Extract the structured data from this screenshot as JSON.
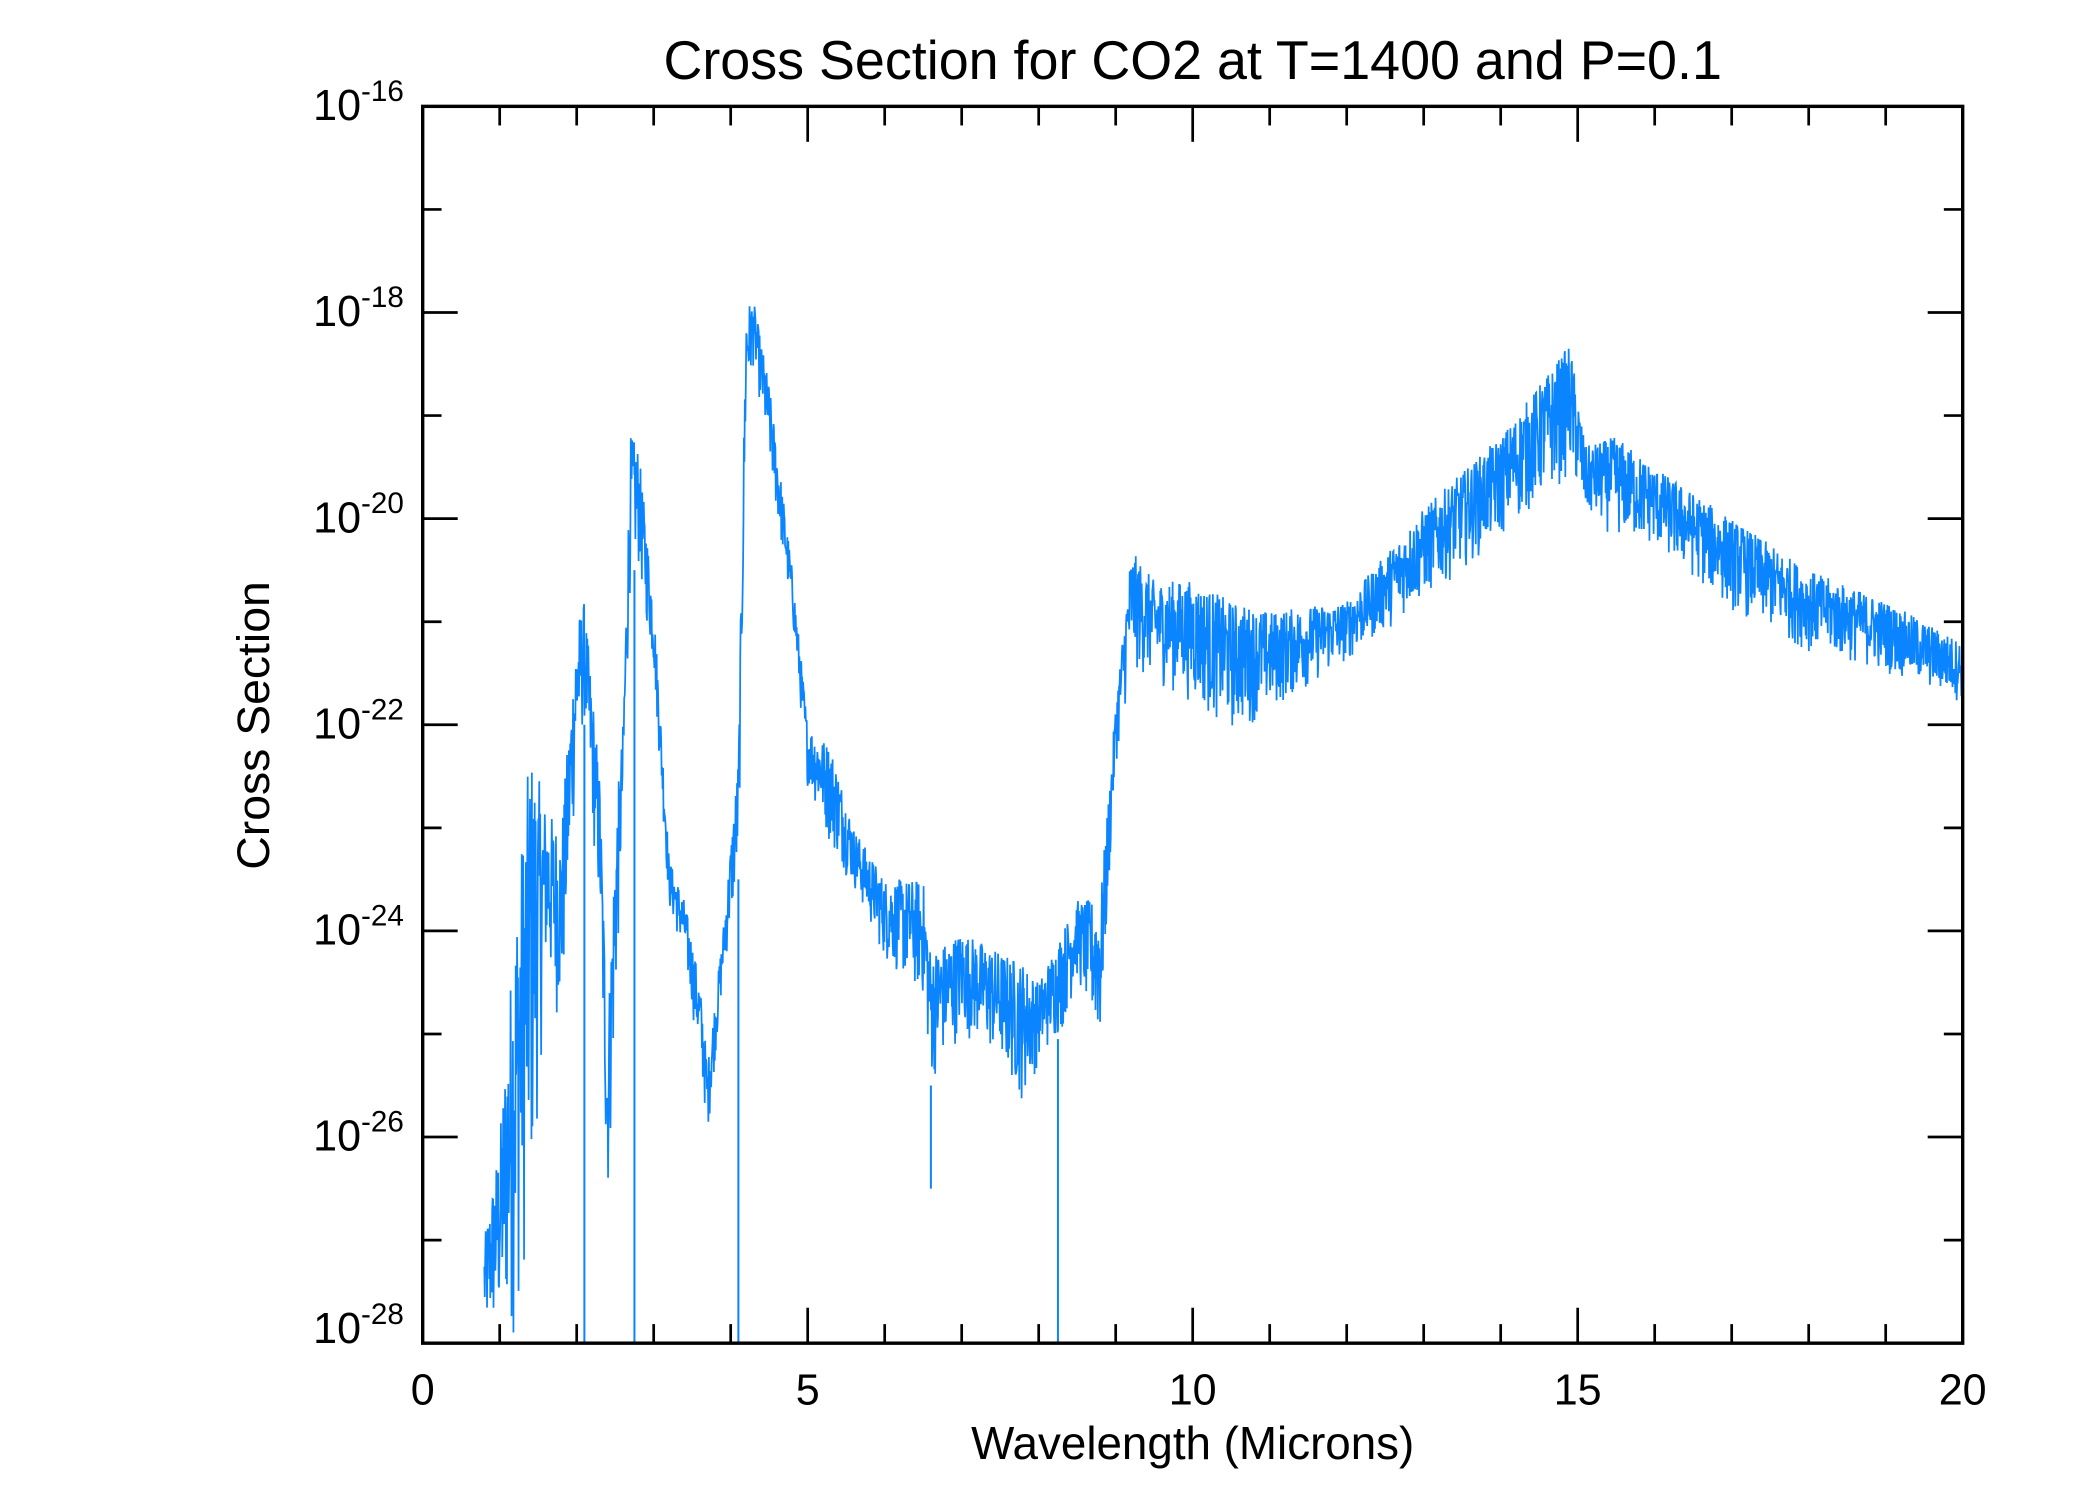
{
  "chart_data": {
    "type": "line",
    "title": "Cross Section for CO2 at T=1400 and P=0.1",
    "xlabel": "Wavelength (Microns)",
    "ylabel": "Cross Section",
    "xlim": [
      0,
      20
    ],
    "ylim": [
      1e-28,
      1e-16
    ],
    "yscale": "log",
    "grid": false,
    "line_color": "#0A84FF",
    "x_ticks": [
      "0",
      "5",
      "10",
      "15",
      "20"
    ],
    "y_ticks": [
      {
        "base": "10",
        "exp": "-16"
      },
      {
        "base": "10",
        "exp": "-18"
      },
      {
        "base": "10",
        "exp": "-20"
      },
      {
        "base": "10",
        "exp": "-22"
      },
      {
        "base": "10",
        "exp": "-24"
      },
      {
        "base": "10",
        "exp": "-26"
      },
      {
        "base": "10",
        "exp": "-28"
      }
    ],
    "series_envelope_log10": {
      "wavelength": [
        0.8,
        1.0,
        1.2,
        1.4,
        1.6,
        1.8,
        2.0,
        2.1,
        2.3,
        2.4,
        2.5,
        2.6,
        2.7,
        2.8,
        3.0,
        3.2,
        3.4,
        3.6,
        3.7,
        3.9,
        4.1,
        4.2,
        4.3,
        4.5,
        4.8,
        5.0,
        5.3,
        5.6,
        6.0,
        6.5,
        6.6,
        7.0,
        7.5,
        7.8,
        8.0,
        8.3,
        8.5,
        8.8,
        9.0,
        9.2,
        9.5,
        10.0,
        10.5,
        11.0,
        12.0,
        13.0,
        14.0,
        14.9,
        15.1,
        15.5,
        16.0,
        17.0,
        18.0,
        19.0,
        20.0
      ],
      "upper": [
        -27.0,
        -26.0,
        -23.8,
        -22.2,
        -22.8,
        -23.0,
        -21.0,
        -20.8,
        -22.5,
        -25.0,
        -23.0,
        -22.0,
        -19.2,
        -19.3,
        -20.8,
        -23.3,
        -23.7,
        -24.5,
        -25.3,
        -24.0,
        -22.3,
        -17.9,
        -17.9,
        -18.7,
        -20.5,
        -22.0,
        -22.2,
        -23.0,
        -23.5,
        -23.5,
        -24.2,
        -24.0,
        -24.2,
        -24.3,
        -24.5,
        -24.0,
        -23.7,
        -23.7,
        -21.8,
        -20.3,
        -20.6,
        -20.6,
        -20.8,
        -20.9,
        -20.8,
        -19.9,
        -19.2,
        -18.3,
        -19.3,
        -19.2,
        -19.5,
        -20.0,
        -20.5,
        -20.8,
        -21.2
      ],
      "lower": [
        -28.0,
        -28.0,
        -28.0,
        -27.0,
        -24.5,
        -25.0,
        -22.5,
        -22.0,
        -24.0,
        -26.8,
        -25.0,
        -23.0,
        -20.5,
        -20.5,
        -21.5,
        -23.8,
        -24.3,
        -25.3,
        -26.0,
        -24.5,
        -23.5,
        -19.0,
        -18.5,
        -19.5,
        -21.0,
        -22.6,
        -23.2,
        -23.6,
        -24.3,
        -24.7,
        -25.5,
        -25.0,
        -25.3,
        -25.7,
        -25.3,
        -25.0,
        -24.5,
        -25.2,
        -22.4,
        -21.5,
        -21.6,
        -21.8,
        -22.1,
        -21.9,
        -21.4,
        -20.8,
        -20.2,
        -19.6,
        -20.0,
        -20.2,
        -20.3,
        -20.9,
        -21.3,
        -21.5,
        -21.8
      ]
    },
    "dips_to_floor_wavelength": [
      2.1,
      2.75,
      4.1,
      8.25
    ],
    "dip_6_6": {
      "wavelength": 6.6,
      "log10_min": -26.5
    }
  }
}
